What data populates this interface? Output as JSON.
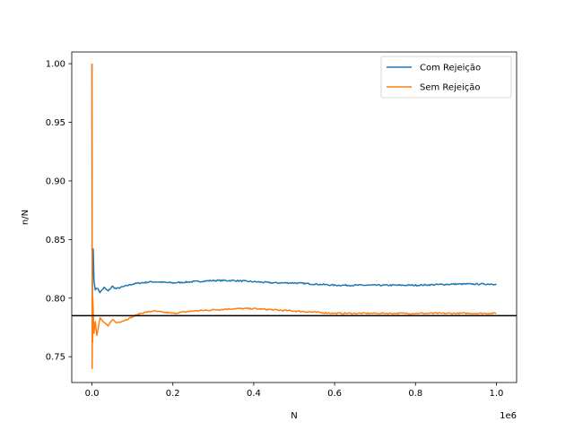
{
  "chart_data": {
    "type": "line",
    "xlabel": "N",
    "ylabel": "n/N",
    "x_offset_label": "1e6",
    "xlim": [
      -0.05,
      1.05
    ],
    "ylim": [
      0.728,
      1.01
    ],
    "x_ticks": [
      0.0,
      0.2,
      0.4,
      0.6,
      0.8,
      1.0
    ],
    "x_tick_labels": [
      "0.0",
      "0.2",
      "0.4",
      "0.6",
      "0.8",
      "1.0"
    ],
    "y_ticks": [
      0.75,
      0.8,
      0.85,
      0.9,
      0.95,
      1.0
    ],
    "y_tick_labels": [
      "0.75",
      "0.80",
      "0.85",
      "0.90",
      "0.95",
      "1.00"
    ],
    "grid": false,
    "legend_position": "top-right",
    "reference_line": {
      "y": 0.785,
      "color": "#000000"
    },
    "series": [
      {
        "name": "Com Rejeição",
        "color": "#1f77b4",
        "x": [
          0,
          0.0003,
          0.0008,
          0.0015,
          0.003,
          0.005,
          0.008,
          0.012,
          0.02,
          0.03,
          0.04,
          0.05,
          0.06,
          0.08,
          0.1,
          0.12,
          0.15,
          0.2,
          0.25,
          0.3,
          0.35,
          0.4,
          0.45,
          0.5,
          0.55,
          0.6,
          0.7,
          0.8,
          0.9,
          1.0
        ],
        "y": [
          1.0,
          0.85,
          0.79,
          0.83,
          0.842,
          0.815,
          0.807,
          0.809,
          0.805,
          0.809,
          0.806,
          0.81,
          0.808,
          0.81,
          0.812,
          0.813,
          0.814,
          0.813,
          0.814,
          0.815,
          0.815,
          0.814,
          0.813,
          0.813,
          0.812,
          0.811,
          0.811,
          0.811,
          0.812,
          0.812
        ]
      },
      {
        "name": "Sem Rejeição",
        "color": "#ff7f0e",
        "x": [
          0,
          0.0002,
          0.0005,
          0.001,
          0.0015,
          0.002,
          0.003,
          0.005,
          0.008,
          0.012,
          0.02,
          0.03,
          0.04,
          0.05,
          0.06,
          0.08,
          0.1,
          0.12,
          0.15,
          0.2,
          0.25,
          0.3,
          0.35,
          0.4,
          0.45,
          0.5,
          0.55,
          0.6,
          0.7,
          0.8,
          0.9,
          1.0
        ],
        "y": [
          1.0,
          0.86,
          0.74,
          0.79,
          0.762,
          0.8,
          0.79,
          0.77,
          0.78,
          0.768,
          0.783,
          0.779,
          0.776,
          0.782,
          0.779,
          0.781,
          0.784,
          0.787,
          0.789,
          0.787,
          0.789,
          0.79,
          0.791,
          0.791,
          0.79,
          0.789,
          0.788,
          0.787,
          0.787,
          0.787,
          0.787,
          0.787
        ]
      }
    ]
  }
}
